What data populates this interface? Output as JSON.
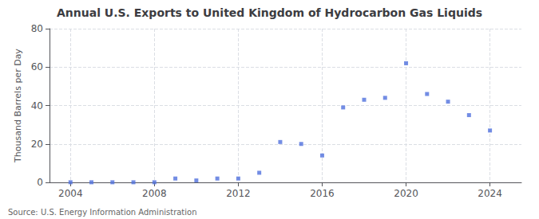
{
  "chart_data": {
    "type": "scatter",
    "title": "Annual U.S. Exports to United Kingdom of Hydrocarbon Gas Liquids",
    "ylabel": "Thousand Barrels per Day",
    "annotations": [
      "Source: U.S. Energy Information Administration"
    ],
    "x": [
      2004,
      2005,
      2006,
      2007,
      2008,
      2009,
      2010,
      2011,
      2012,
      2013,
      2014,
      2015,
      2016,
      2017,
      2018,
      2019,
      2020,
      2021,
      2022,
      2023,
      2024
    ],
    "values": [
      0.05,
      0.05,
      0.05,
      0.05,
      0.05,
      2.0,
      1.0,
      2.0,
      2.0,
      5.0,
      21.0,
      20.0,
      14.0,
      39.0,
      43.0,
      44.0,
      62.0,
      46.0,
      42.0,
      35.0,
      27.0
    ],
    "xlim": [
      2003.0,
      2025.5
    ],
    "xticks": [
      2004,
      2008,
      2012,
      2016,
      2020,
      2024
    ],
    "ylim": [
      0,
      80
    ],
    "yticks": [
      0,
      20,
      40,
      60,
      80
    ],
    "grid": true,
    "marker": "square"
  }
}
